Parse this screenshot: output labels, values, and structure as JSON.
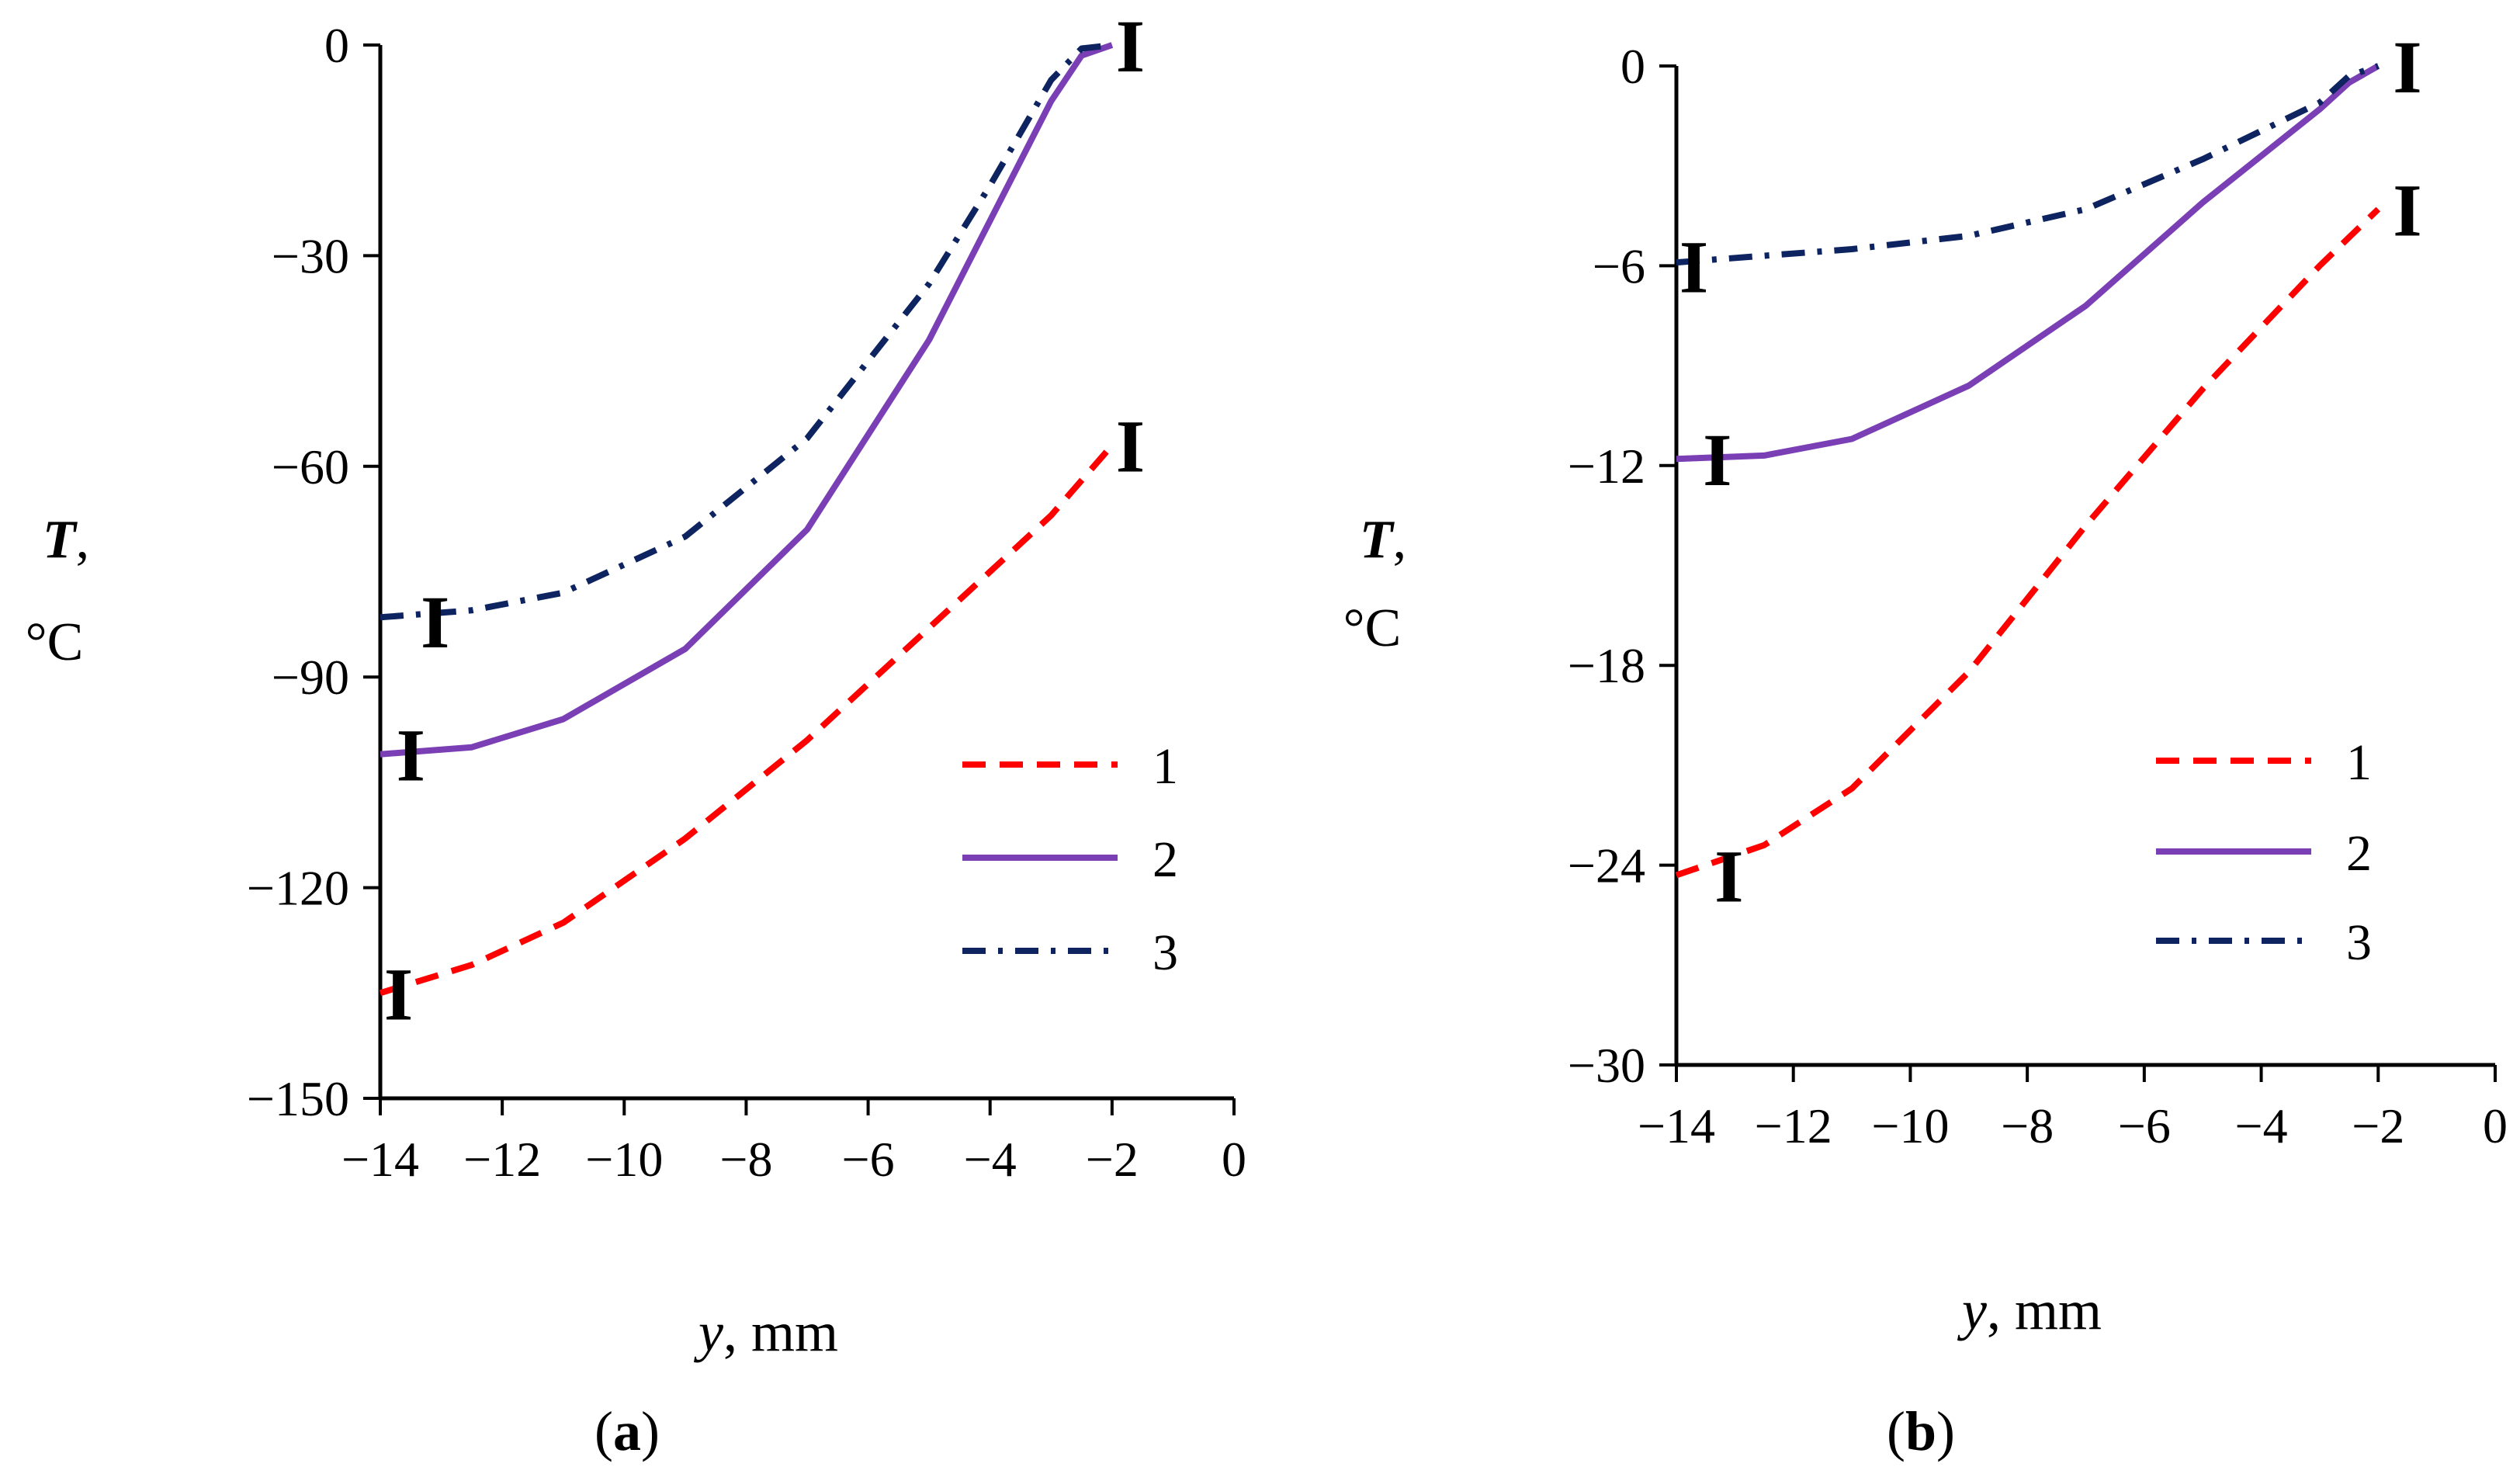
{
  "chart_data": [
    {
      "type": "line",
      "panel": "a",
      "caption_label": "a",
      "ylabel_var": "T",
      "ylabel_unit": "°C",
      "xlabel_var": "y",
      "xlabel_unit": ", mm",
      "xlim": [
        -14,
        0
      ],
      "ylim": [
        -150,
        0
      ],
      "x_ticks": [
        -14,
        -12,
        -10,
        -8,
        -6,
        -4,
        -2,
        0
      ],
      "x_tick_labels": [
        "−14",
        "−12",
        "−10",
        "−8",
        "−6",
        "−4",
        "−2",
        "0"
      ],
      "y_ticks": [
        0,
        -30,
        -60,
        -90,
        -120,
        -150
      ],
      "y_tick_labels": [
        "0",
        "−30",
        "−60",
        "−90",
        "−120",
        "−150"
      ],
      "series": [
        {
          "name": "1",
          "color": "#ff0000",
          "dash": "dashed",
          "x": [
            -14,
            -12.5,
            -11,
            -9,
            -7,
            -5,
            -3,
            -2
          ],
          "y": [
            -135,
            -131,
            -125,
            -113,
            -99,
            -83,
            -67,
            -57
          ]
        },
        {
          "name": "2",
          "color": "#7b3fb5",
          "dash": "solid",
          "x": [
            -14,
            -12.5,
            -11,
            -9,
            -7,
            -5,
            -3,
            -2.5,
            -2
          ],
          "y": [
            -101,
            -100,
            -96,
            -86,
            -69,
            -42,
            -8,
            -1.5,
            0
          ]
        },
        {
          "name": "3",
          "color": "#0d2461",
          "dash": "dashdot",
          "x": [
            -14,
            -12.5,
            -11,
            -9,
            -7,
            -5,
            -4,
            -3,
            -2.5,
            -2
          ],
          "y": [
            -81.5,
            -80.5,
            -78,
            -70,
            -56,
            -34,
            -20,
            -5,
            -0.5,
            0
          ]
        }
      ],
      "error_markers": [
        {
          "x": -13.7,
          "y": -135
        },
        {
          "x": -13.5,
          "y": -101
        },
        {
          "x": -13.1,
          "y": -82
        },
        {
          "x": -1.7,
          "y": -57
        },
        {
          "x": -1.7,
          "y": 0
        }
      ],
      "error_marker_glyph": "I",
      "legend": [
        "1",
        "2",
        "3"
      ]
    },
    {
      "type": "line",
      "panel": "b",
      "caption_label": "b",
      "ylabel_var": "T",
      "ylabel_unit": "°C",
      "xlabel_var": "y",
      "xlabel_unit": ", mm",
      "xlim": [
        -14,
        0
      ],
      "ylim": [
        -30,
        0
      ],
      "x_ticks": [
        -14,
        -12,
        -10,
        -8,
        -6,
        -4,
        -2,
        0
      ],
      "x_tick_labels": [
        "−14",
        "−12",
        "−10",
        "−8",
        "−6",
        "−4",
        "−2",
        "0"
      ],
      "y_ticks": [
        0,
        -6,
        -12,
        -18,
        -24,
        -30
      ],
      "y_tick_labels": [
        "0",
        "−6",
        "−12",
        "−18",
        "−24",
        "−30"
      ],
      "series": [
        {
          "name": "1",
          "color": "#ff0000",
          "dash": "dashed",
          "x": [
            -14,
            -12.5,
            -11,
            -9,
            -7,
            -5,
            -3,
            -2
          ],
          "y": [
            -24.3,
            -23.4,
            -21.7,
            -18.2,
            -13.8,
            -9.7,
            -6,
            -4.3
          ]
        },
        {
          "name": "2",
          "color": "#7b3fb5",
          "dash": "solid",
          "x": [
            -14,
            -12.5,
            -11,
            -9,
            -7,
            -5,
            -3,
            -2.5,
            -2
          ],
          "y": [
            -11.8,
            -11.7,
            -11.2,
            -9.6,
            -7.2,
            -4.1,
            -1.3,
            -0.5,
            0
          ]
        },
        {
          "name": "3",
          "color": "#0d2461",
          "dash": "dashdot",
          "x": [
            -14,
            -12.5,
            -11,
            -9,
            -7,
            -5,
            -3,
            -2.5,
            -2
          ],
          "y": [
            -5.9,
            -5.7,
            -5.5,
            -5.1,
            -4.3,
            -2.8,
            -1.1,
            -0.3,
            0
          ]
        }
      ],
      "error_markers": [
        {
          "x": -13.1,
          "y": -24.3
        },
        {
          "x": -13.3,
          "y": -11.8
        },
        {
          "x": -13.7,
          "y": -6
        },
        {
          "x": -1.5,
          "y": 0
        },
        {
          "x": -1.5,
          "y": -4.3
        }
      ],
      "error_marker_glyph": "I",
      "legend": [
        "1",
        "2",
        "3"
      ]
    }
  ]
}
